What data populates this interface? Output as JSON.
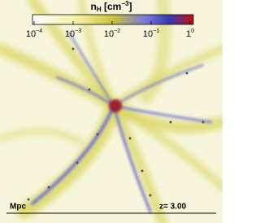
{
  "colorbar": {
    "label": {
      "symbol": "n",
      "subscript": "H",
      "unit": "[cm",
      "unit_exponent": "−3",
      "close": "]"
    },
    "ticks": [
      {
        "base": "10",
        "exponent": "−4"
      },
      {
        "base": "10",
        "exponent": "−3"
      },
      {
        "base": "10",
        "exponent": "−2"
      },
      {
        "base": "10",
        "exponent": "−1"
      },
      {
        "base": "1",
        "exponent": "0"
      }
    ]
  },
  "footer": {
    "scale_label": "Mpc",
    "redshift": "z= 3.00"
  }
}
